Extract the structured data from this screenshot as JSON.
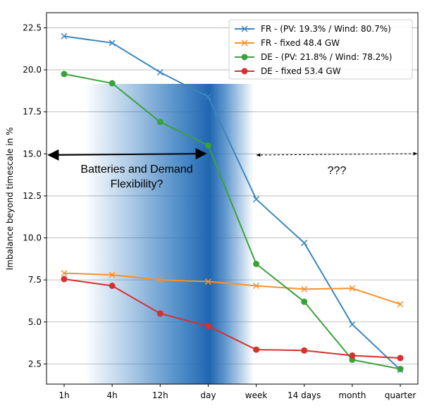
{
  "chart_data": {
    "type": "line",
    "title": "",
    "xlabel": "",
    "ylabel": "Imbalance beyond timescale in %",
    "categories": [
      "1h",
      "4h",
      "12h",
      "day",
      "week",
      "14 days",
      "month",
      "quarter"
    ],
    "yticks": [
      "2.5",
      "5.0",
      "7.5",
      "10.0",
      "12.5",
      "15.0",
      "17.5",
      "20.0",
      "22.5"
    ],
    "ylim": [
      1.3,
      23.4
    ],
    "grid": "horizontal",
    "legend_position": "top-right",
    "series": [
      {
        "name": "FR - (PV: 19.3% / Wind: 80.7%)",
        "marker": "x",
        "color": "#3b86c2",
        "values": [
          22.0,
          21.6,
          19.85,
          18.4,
          12.3,
          9.7,
          4.85,
          2.15
        ]
      },
      {
        "name": "FR - fixed 48.4 GW",
        "marker": "x",
        "color": "#f5912e",
        "values": [
          7.9,
          7.8,
          7.5,
          7.4,
          7.15,
          6.95,
          7.0,
          6.05
        ]
      },
      {
        "name": "DE - (PV: 21.8% / Wind: 78.2%)",
        "marker": "o",
        "color": "#3aa23a",
        "values": [
          19.75,
          19.2,
          16.9,
          15.5,
          8.45,
          6.2,
          2.75,
          2.2
        ]
      },
      {
        "name": "DE - fixed 53.4 GW",
        "marker": "o",
        "color": "#d63030",
        "values": [
          7.55,
          7.15,
          5.5,
          4.75,
          3.35,
          3.3,
          3.0,
          2.85
        ]
      }
    ],
    "annotations": {
      "left_label_line1": "Batteries and Demand",
      "left_label_line2": "Flexibility?",
      "right_label": "???",
      "shaded_band": "4h to week, darkest at day"
    }
  }
}
